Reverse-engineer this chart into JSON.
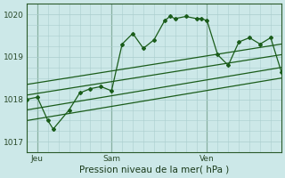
{
  "xlabel": "Pression niveau de la mer( hPa )",
  "bg_color": "#cce8e8",
  "grid_color": "#aacece",
  "line_color": "#1a5c1a",
  "vline_color": "#3a6a3a",
  "ylim": [
    1016.75,
    1020.25
  ],
  "xlim": [
    0,
    48
  ],
  "xtick_positions": [
    2,
    16,
    34
  ],
  "xtick_labels": [
    "Jeu",
    "Sam",
    "Ven"
  ],
  "ytick_positions": [
    1017,
    1018,
    1019,
    1020
  ],
  "ytick_labels": [
    "1017",
    "1018",
    "1019",
    "1020"
  ],
  "vline_positions": [
    2,
    16,
    34
  ],
  "main_line_x": [
    0,
    2,
    4,
    5,
    8,
    10,
    12,
    14,
    16,
    18,
    20,
    22,
    24,
    26,
    27,
    28,
    30,
    32,
    33,
    34,
    36,
    38,
    40,
    42,
    44,
    46,
    48
  ],
  "main_line_y": [
    1018.0,
    1018.05,
    1017.5,
    1017.3,
    1017.75,
    1018.15,
    1018.25,
    1018.3,
    1018.2,
    1019.3,
    1019.55,
    1019.2,
    1019.4,
    1019.85,
    1019.95,
    1019.9,
    1019.95,
    1019.9,
    1019.9,
    1019.85,
    1019.05,
    1018.8,
    1019.35,
    1019.45,
    1019.3,
    1019.45,
    1018.65
  ],
  "band_lines": [
    {
      "x": [
        0,
        48
      ],
      "y": [
        1018.35,
        1019.3
      ]
    },
    {
      "x": [
        0,
        48
      ],
      "y": [
        1018.1,
        1019.05
      ]
    },
    {
      "x": [
        0,
        48
      ],
      "y": [
        1017.75,
        1018.75
      ]
    },
    {
      "x": [
        0,
        48
      ],
      "y": [
        1017.5,
        1018.5
      ]
    }
  ],
  "marker": "D",
  "markersize": 2.0,
  "linewidth": 0.9
}
